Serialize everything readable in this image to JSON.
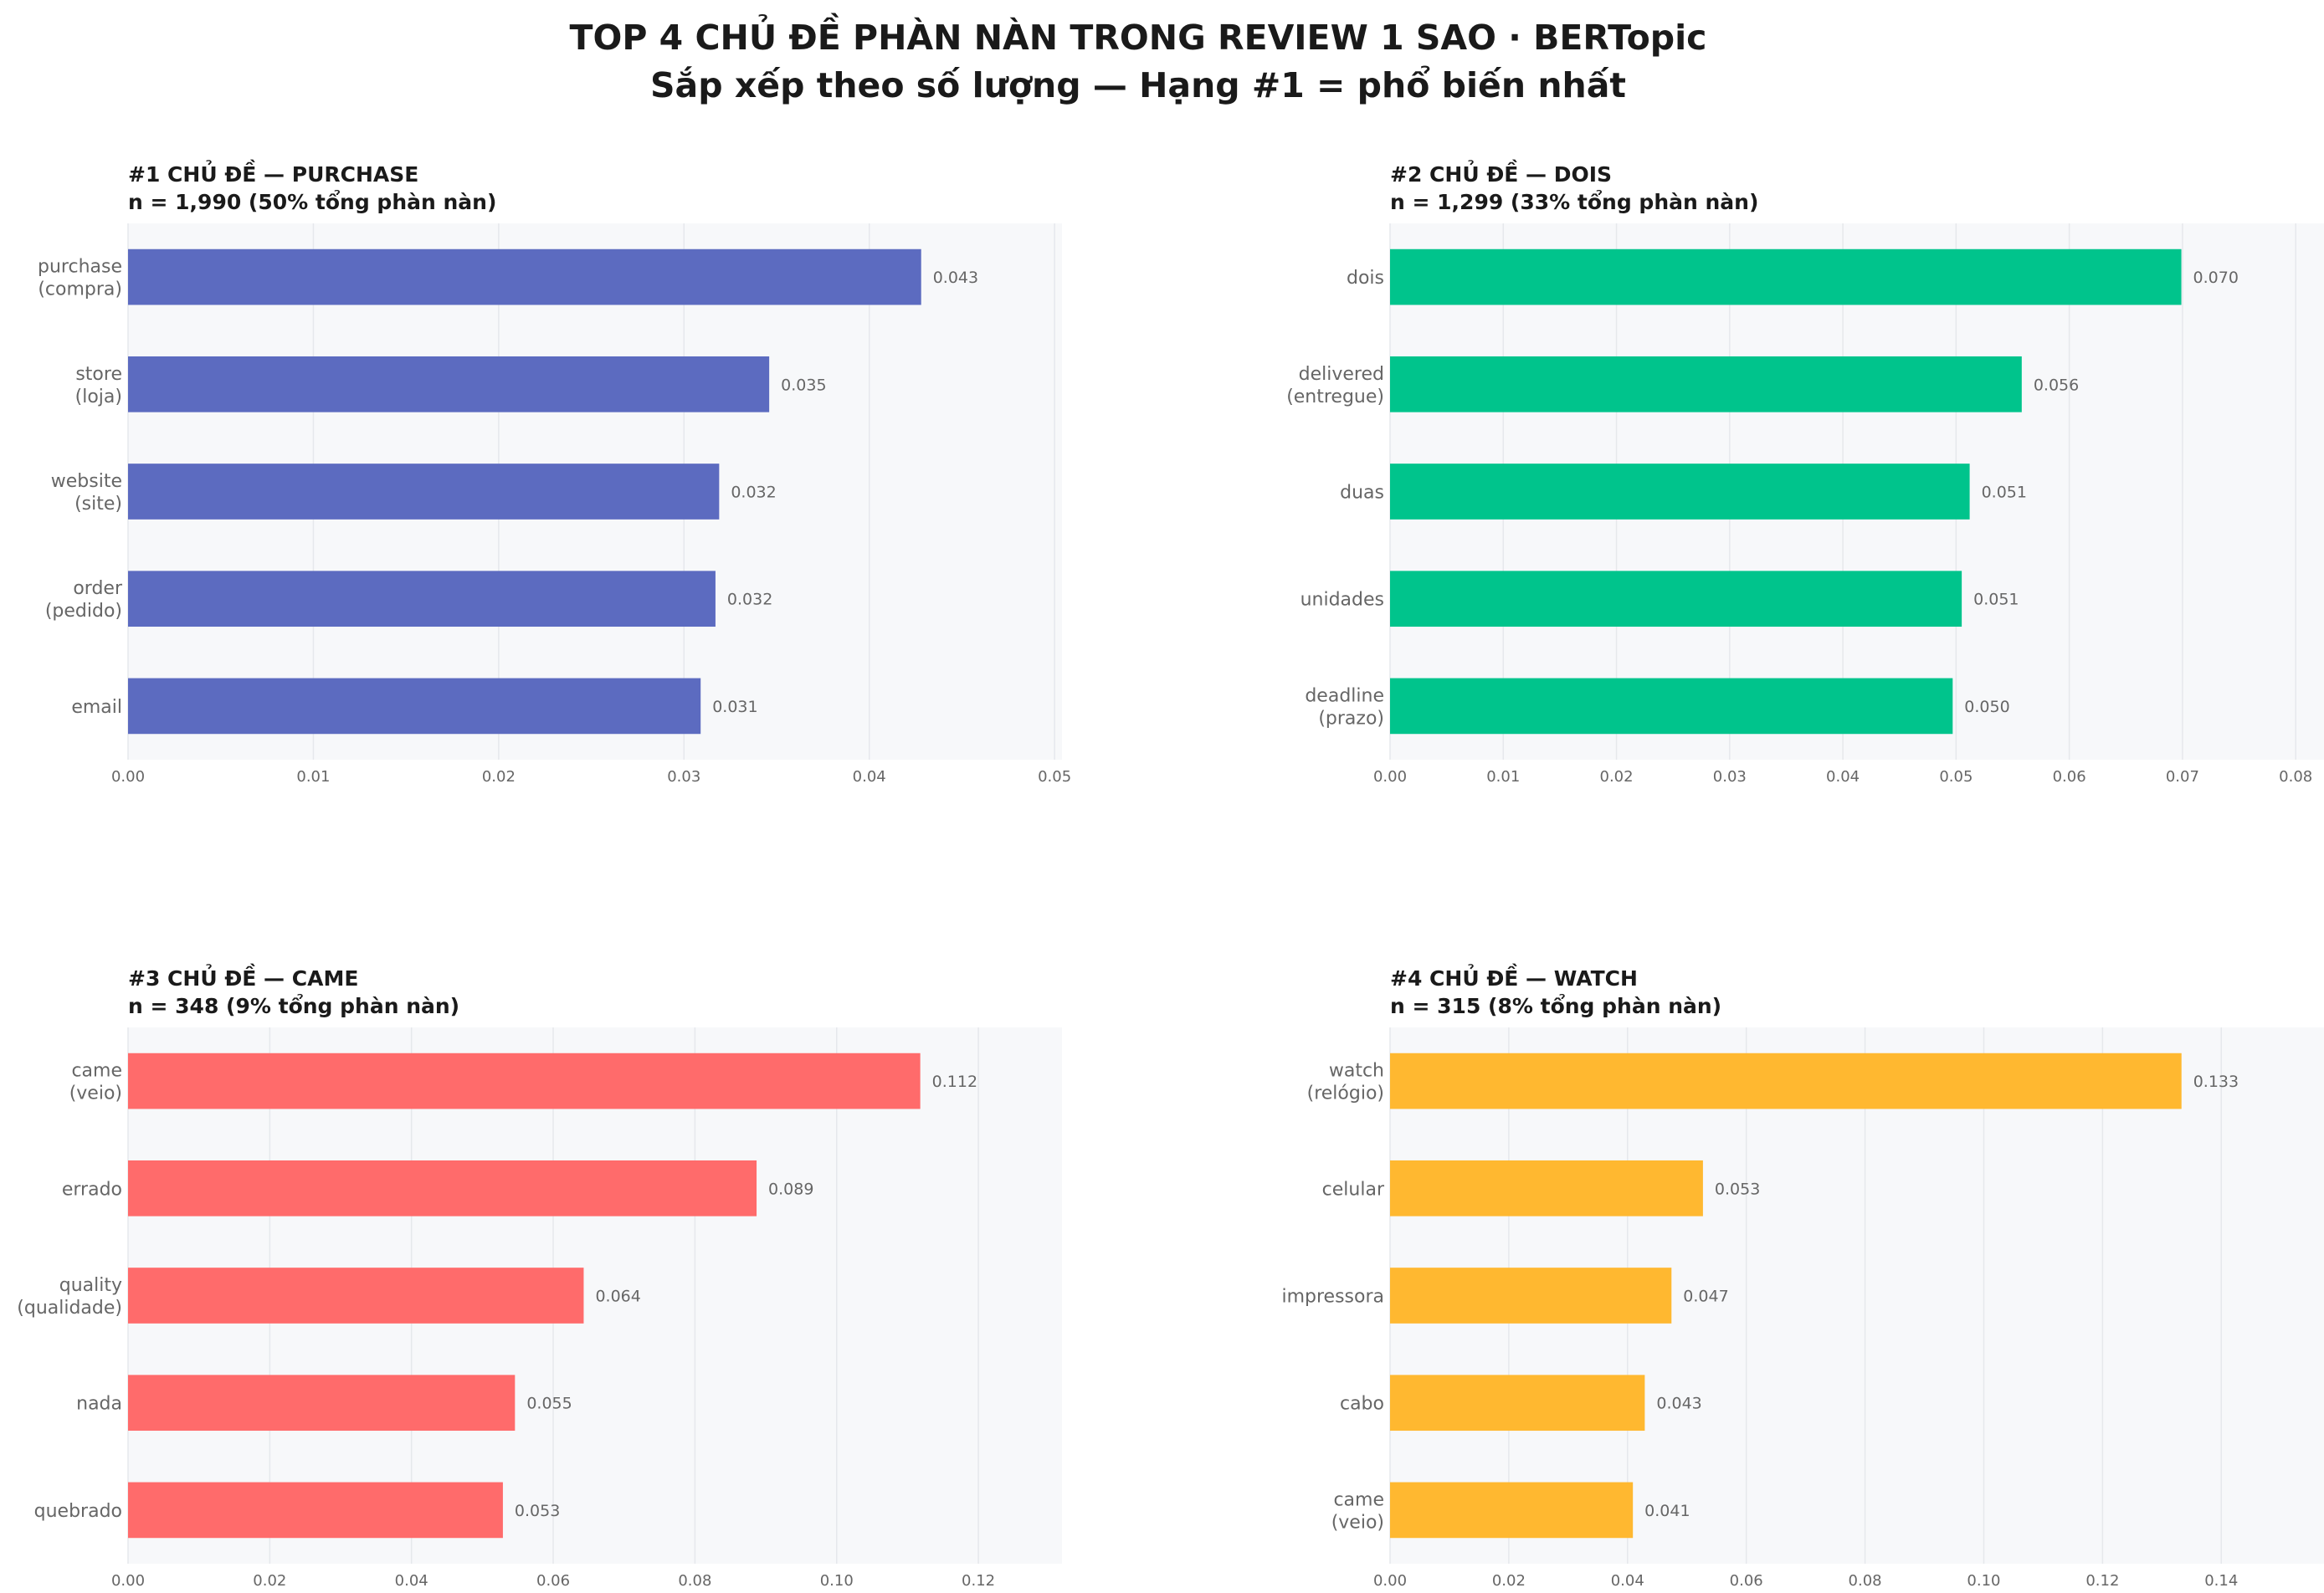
{
  "title_line1": "TOP 4 CHỦ ĐỀ PHÀN NÀN TRONG REVIEW 1 SAO  ·  BERTopic",
  "title_line2": "Sắp xếp theo số lượng  —  Hạng #1 = phổ biến nhất",
  "chart_data": [
    {
      "type": "bar",
      "orientation": "horizontal",
      "title": "#1  CHỦ ĐỀ — PURCHASE",
      "subtitle": "n = 1,990   (50% tổng phàn nàn)",
      "color": "#5C6BC0",
      "categories": [
        [
          "purchase",
          "(compra)"
        ],
        [
          "store",
          "(loja)"
        ],
        [
          "website",
          "(site)"
        ],
        [
          "order",
          "(pedido)"
        ],
        [
          "email"
        ]
      ],
      "values": [
        0.0428,
        0.0346,
        0.0319,
        0.0317,
        0.0309
      ],
      "value_labels": [
        "0.043",
        "0.035",
        "0.032",
        "0.032",
        "0.031"
      ],
      "xlim": [
        0,
        0.0504
      ],
      "xticks": [
        0,
        0.01,
        0.02,
        0.03,
        0.04,
        0.05
      ],
      "xtick_labels": [
        "0.00",
        "0.01",
        "0.02",
        "0.03",
        "0.04",
        "0.05"
      ],
      "grid": true
    },
    {
      "type": "bar",
      "orientation": "horizontal",
      "title": "#2  CHỦ ĐỀ — DOIS",
      "subtitle": "n = 1,299   (33% tổng phàn nàn)",
      "color": "#00C48C",
      "categories": [
        [
          "dois"
        ],
        [
          "delivered",
          "(entregue)"
        ],
        [
          "duas"
        ],
        [
          "unidades"
        ],
        [
          "deadline",
          "(prazo)"
        ]
      ],
      "values": [
        0.0699,
        0.0558,
        0.0512,
        0.0505,
        0.0497
      ],
      "value_labels": [
        "0.070",
        "0.056",
        "0.051",
        "0.051",
        "0.050"
      ],
      "xlim": [
        0,
        0.0825
      ],
      "xticks": [
        0,
        0.01,
        0.02,
        0.03,
        0.04,
        0.05,
        0.06,
        0.07,
        0.08
      ],
      "xtick_labels": [
        "0.00",
        "0.01",
        "0.02",
        "0.03",
        "0.04",
        "0.05",
        "0.06",
        "0.07",
        "0.08"
      ],
      "grid": true
    },
    {
      "type": "bar",
      "orientation": "horizontal",
      "title": "#3  CHỦ ĐỀ — CAME",
      "subtitle": "n = 348   (9% tổng phàn nàn)",
      "color": "#FF6B6B",
      "categories": [
        [
          "came",
          "(veio)"
        ],
        [
          "errado"
        ],
        [
          "quality",
          "(qualidade)"
        ],
        [
          "nada"
        ],
        [
          "quebrado"
        ]
      ],
      "values": [
        0.1118,
        0.0887,
        0.0643,
        0.0546,
        0.0529
      ],
      "value_labels": [
        "0.112",
        "0.089",
        "0.064",
        "0.055",
        "0.053"
      ],
      "xlim": [
        0,
        0.1318
      ],
      "xticks": [
        0,
        0.02,
        0.04,
        0.06,
        0.08,
        0.1,
        0.12
      ],
      "xtick_labels": [
        "0.00",
        "0.02",
        "0.04",
        "0.06",
        "0.08",
        "0.10",
        "0.12"
      ],
      "grid": true
    },
    {
      "type": "bar",
      "orientation": "horizontal",
      "title": "#4  CHỦ ĐỀ — WATCH",
      "subtitle": "n = 315   (8% tổng phàn nàn)",
      "color": "#FFB830",
      "categories": [
        [
          "watch",
          "(relógio)"
        ],
        [
          "celular"
        ],
        [
          "impressora"
        ],
        [
          "cabo"
        ],
        [
          "came",
          "(veio)"
        ]
      ],
      "values": [
        0.1333,
        0.0527,
        0.0474,
        0.0429,
        0.0409
      ],
      "value_labels": [
        "0.133",
        "0.053",
        "0.047",
        "0.043",
        "0.041"
      ],
      "xlim": [
        0,
        0.1573
      ],
      "xticks": [
        0,
        0.02,
        0.04,
        0.06,
        0.08,
        0.1,
        0.12,
        0.14
      ],
      "xtick_labels": [
        "0.00",
        "0.02",
        "0.04",
        "0.06",
        "0.08",
        "0.10",
        "0.12",
        "0.14"
      ],
      "grid": true
    }
  ]
}
